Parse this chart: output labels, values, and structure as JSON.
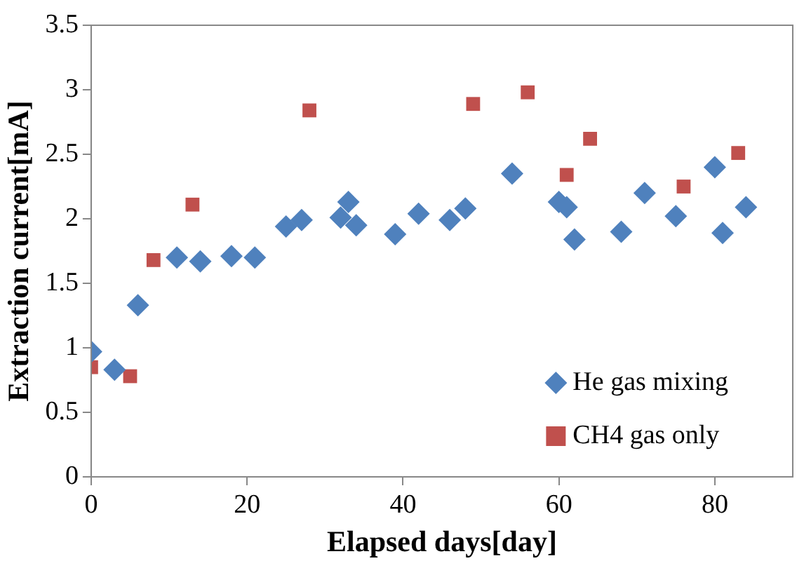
{
  "chart_data": {
    "type": "scatter",
    "xlabel": "Elapsed days[day]",
    "ylabel": "Extraction current[mA]",
    "xlim": [
      0,
      90
    ],
    "xticks": [
      0,
      20,
      40,
      60,
      80
    ],
    "ylim": [
      0,
      3.5
    ],
    "yticks": [
      0,
      0.5,
      1,
      1.5,
      2,
      2.5,
      3,
      3.5
    ],
    "grid": false,
    "legend": "bottom right",
    "series": [
      {
        "name": "He gas mixing",
        "color": "#4f81bd",
        "marker": "diamond",
        "x": [
          0,
          3,
          6,
          11,
          14,
          18,
          21,
          25,
          27,
          32,
          33,
          34,
          39,
          42,
          46,
          48,
          54,
          60,
          61,
          62,
          68,
          71,
          75,
          80,
          81,
          84
        ],
        "values": [
          0.97,
          0.83,
          1.33,
          1.7,
          1.67,
          1.71,
          1.7,
          1.94,
          1.99,
          2.01,
          2.13,
          1.95,
          1.88,
          2.04,
          1.99,
          2.08,
          2.35,
          2.13,
          2.09,
          1.84,
          1.9,
          2.2,
          2.02,
          2.4,
          1.89,
          2.09
        ]
      },
      {
        "name": "CH4 gas only",
        "color": "#c0504d",
        "marker": "square",
        "x": [
          0,
          5,
          8,
          13,
          28,
          49,
          56,
          61,
          64,
          76,
          83
        ],
        "values": [
          0.85,
          0.78,
          1.68,
          2.11,
          2.84,
          2.89,
          2.98,
          2.34,
          2.62,
          2.25,
          2.51
        ]
      }
    ]
  }
}
